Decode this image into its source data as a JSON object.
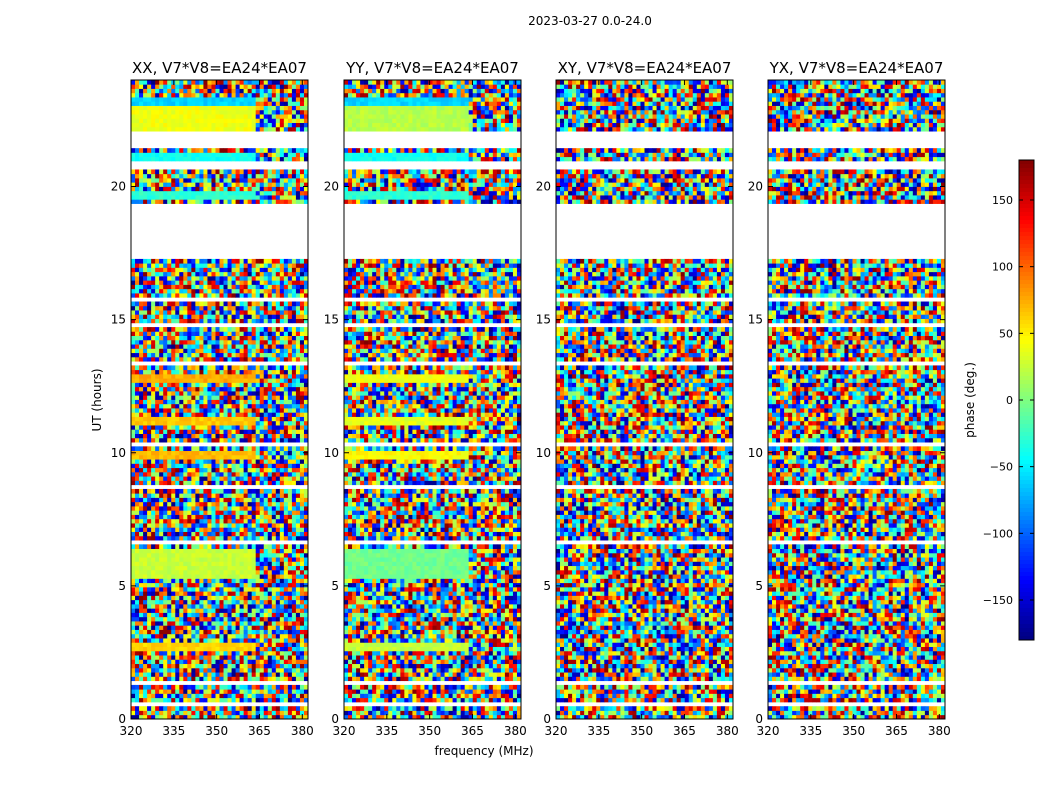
{
  "chart_data": {
    "type": "heatmap",
    "suptitle": "2023-03-27 0.0-24.0",
    "xlabel": "frequency (MHz)",
    "ylabel": "UT (hours)",
    "xlim": [
      320,
      382
    ],
    "ylim": [
      0,
      24
    ],
    "xticks": [
      320,
      335,
      350,
      365,
      380
    ],
    "yticks": [
      0,
      5,
      10,
      15,
      20
    ],
    "colorbar": {
      "label": "phase (deg.)",
      "range": [
        -180,
        180
      ],
      "ticks": [
        150,
        100,
        50,
        0,
        -50,
        -100,
        -150
      ],
      "tick_labels": [
        "150",
        "100",
        "50",
        "0",
        "−50",
        "−100",
        "−150"
      ],
      "colormap": "jet"
    },
    "flagged_ut_ranges": [
      [
        0.55,
        0.62
      ],
      [
        1.3,
        1.45
      ],
      [
        6.6,
        6.75
      ],
      [
        8.6,
        8.75
      ],
      [
        10.3,
        10.4
      ],
      [
        13.35,
        13.45
      ],
      [
        14.75,
        14.85
      ],
      [
        15.75,
        15.85
      ],
      [
        17.3,
        19.35
      ],
      [
        20.6,
        21.0
      ],
      [
        21.5,
        22.0
      ]
    ],
    "coherent_segments": [
      {
        "ut": [
          2.5,
          2.9
        ],
        "phases": {
          "XX": 60,
          "YY": 25
        }
      },
      {
        "ut": [
          5.3,
          6.4
        ],
        "phases": {
          "XX": 25,
          "YY": -5
        }
      },
      {
        "ut": [
          9.75,
          10.05
        ],
        "phases": {
          "XX": 70,
          "YY": 45
        }
      },
      {
        "ut": [
          11.1,
          11.35
        ],
        "phases": {
          "XX": 65,
          "YY": 35
        }
      },
      {
        "ut": [
          12.6,
          13.0
        ],
        "phases": {
          "XX": 75,
          "YY": 40
        }
      },
      {
        "ut": [
          22.0,
          23.0
        ],
        "phases": {
          "XX": 40,
          "YY": 20
        }
      },
      {
        "ut": [
          23.0,
          23.3
        ],
        "phases": {
          "XX": -60,
          "YY": -60
        }
      },
      {
        "ut": [
          21.0,
          21.3
        ],
        "phases": {
          "XX": -40,
          "YY": -40
        }
      },
      {
        "ut": [
          19.5,
          19.8
        ],
        "phases": {
          "XX": -30,
          "YY": -30
        }
      }
    ],
    "coherent_max_freq": 363,
    "panels": [
      {
        "id": "XX",
        "title": "XX, V7*V8=EA24*EA07"
      },
      {
        "id": "YY",
        "title": "YY, V7*V8=EA24*EA07"
      },
      {
        "id": "XY",
        "title": "XY, V7*V8=EA24*EA07"
      },
      {
        "id": "YX",
        "title": "YX, V7*V8=EA24*EA07"
      }
    ]
  }
}
